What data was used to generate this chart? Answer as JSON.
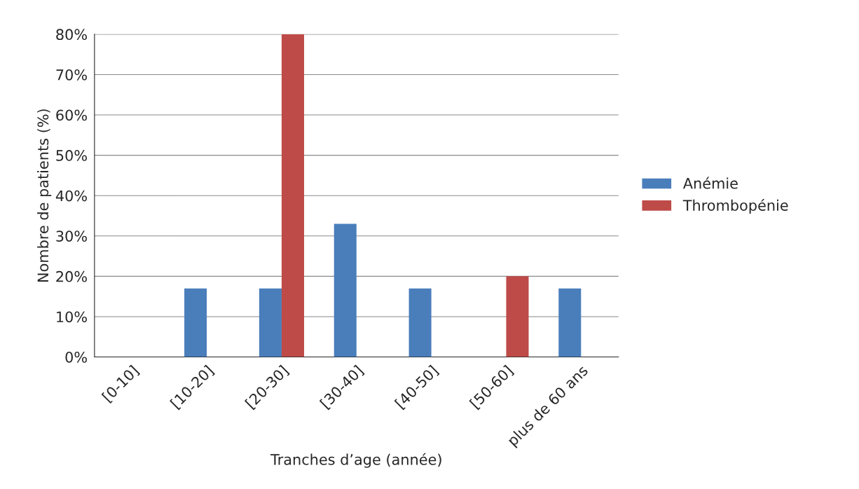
{
  "chart_data": {
    "type": "bar",
    "xlabel": "Tranches d’age (année)",
    "ylabel": "Nombre de patients (%)",
    "categories": [
      "[0-10]",
      "[10-20]",
      "[20-30]",
      "[30-40]",
      "[40-50]",
      "[50-60]",
      "plus de 60 ans"
    ],
    "series": [
      {
        "name": "Anémie",
        "color": "#4a7ebb",
        "values": [
          0,
          17,
          17,
          33,
          17,
          0,
          17
        ]
      },
      {
        "name": "Thrombopénie",
        "color": "#be4b48",
        "values": [
          0,
          0,
          80,
          0,
          0,
          20,
          0
        ]
      }
    ],
    "ylim": [
      0,
      80
    ],
    "yticks": [
      {
        "value": 0,
        "label": "0%"
      },
      {
        "value": 10,
        "label": "10%"
      },
      {
        "value": 20,
        "label": "20%"
      },
      {
        "value": 30,
        "label": "30%"
      },
      {
        "value": 40,
        "label": "40%"
      },
      {
        "value": 50,
        "label": "50%"
      },
      {
        "value": 60,
        "label": "60%"
      },
      {
        "value": 70,
        "label": "70%"
      },
      {
        "value": 80,
        "label": "80%"
      }
    ],
    "grid": "y",
    "legend": "right"
  }
}
